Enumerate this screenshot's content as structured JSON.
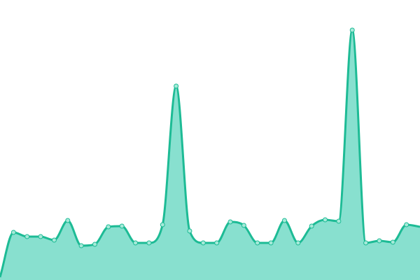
{
  "chart_data": {
    "type": "area",
    "title": "",
    "xlabel": "",
    "ylabel": "",
    "x": [
      0,
      1,
      2,
      3,
      4,
      5,
      6,
      7,
      8,
      9,
      10,
      11,
      12,
      13,
      14,
      15,
      16,
      17,
      18,
      19,
      20,
      21,
      22,
      23,
      24,
      25,
      26,
      27,
      28,
      29,
      30,
      31
    ],
    "series": [
      {
        "values": [
          4,
          68,
          62,
          62,
          57,
          85,
          49,
          51,
          76,
          77,
          53,
          53,
          79,
          277,
          70,
          53,
          53,
          83,
          78,
          53,
          53,
          85,
          53,
          77,
          86,
          84,
          357,
          53,
          56,
          54,
          79,
          76
        ]
      }
    ],
    "xlim": [
      0,
      31
    ],
    "ylim": [
      0,
      400
    ],
    "axes_visible": false,
    "grid": false,
    "legend": "none",
    "smooth": true,
    "colors": {
      "line": "#1dbb95",
      "fill": "#88e0cf",
      "marker_fill": "#a6ead9",
      "marker_stroke": "#1dbb95"
    }
  }
}
